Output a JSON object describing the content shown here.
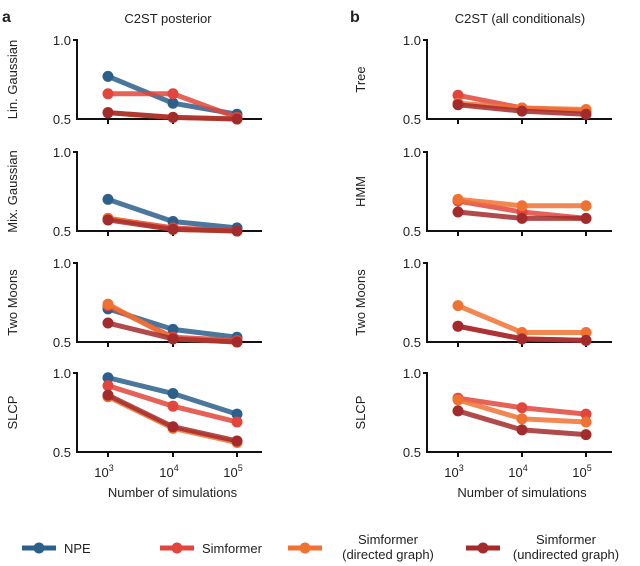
{
  "colors": {
    "NPE": "#2b5f8c",
    "Simformer": "#e2453b",
    "Simformer (directed graph)": "#f07233",
    "Simformer (undirected graph)": "#a32b2b"
  },
  "legend": [
    {
      "key": "NPE",
      "lines": [
        "NPE"
      ]
    },
    {
      "key": "Simformer",
      "lines": [
        "Simformer"
      ]
    },
    {
      "key": "Simformer (directed graph)",
      "lines": [
        "Simformer",
        "(directed graph)"
      ]
    },
    {
      "key": "Simformer (undirected graph)",
      "lines": [
        "Simformer",
        "(undirected graph)"
      ]
    }
  ],
  "chart_data": [
    {
      "panel": "a",
      "title": "C2ST posterior",
      "xlabel": "Number of simulations",
      "type": "line",
      "x": [
        1000,
        10000,
        100000
      ],
      "xtick_labels": [
        "10^3",
        "10^4",
        "10^5"
      ],
      "xscale": "log",
      "ylim": [
        0.5,
        1.0
      ],
      "yticks": [
        "0.5",
        "1.0"
      ],
      "subplots": [
        {
          "ylabel": "Lin. Gaussian",
          "series": [
            {
              "name": "NPE",
              "values": [
                0.77,
                0.6,
                0.53
              ]
            },
            {
              "name": "Simformer",
              "values": [
                0.66,
                0.66,
                0.51
              ]
            },
            {
              "name": "Simformer (directed graph)",
              "values": [
                0.54,
                0.51,
                0.5
              ]
            },
            {
              "name": "Simformer (undirected graph)",
              "values": [
                0.54,
                0.51,
                0.5
              ]
            }
          ]
        },
        {
          "ylabel": "Mix. Gaussian",
          "series": [
            {
              "name": "NPE",
              "values": [
                0.7,
                0.56,
                0.52
              ]
            },
            {
              "name": "Simformer",
              "values": [
                0.58,
                0.52,
                0.5
              ]
            },
            {
              "name": "Simformer (directed graph)",
              "values": [
                0.58,
                0.51,
                0.5
              ]
            },
            {
              "name": "Simformer (undirected graph)",
              "values": [
                0.57,
                0.51,
                0.5
              ]
            }
          ]
        },
        {
          "ylabel": "Two Moons",
          "series": [
            {
              "name": "NPE",
              "values": [
                0.71,
                0.58,
                0.53
              ]
            },
            {
              "name": "Simformer",
              "values": [
                0.73,
                0.53,
                0.51
              ]
            },
            {
              "name": "Simformer (directed graph)",
              "values": [
                0.74,
                0.52,
                0.5
              ]
            },
            {
              "name": "Simformer (undirected graph)",
              "values": [
                0.62,
                0.52,
                0.5
              ]
            }
          ]
        },
        {
          "ylabel": "SLCP",
          "series": [
            {
              "name": "NPE",
              "values": [
                0.97,
                0.87,
                0.74
              ]
            },
            {
              "name": "Simformer",
              "values": [
                0.92,
                0.79,
                0.69
              ]
            },
            {
              "name": "Simformer (directed graph)",
              "values": [
                0.85,
                0.65,
                0.56
              ]
            },
            {
              "name": "Simformer (undirected graph)",
              "values": [
                0.86,
                0.66,
                0.57
              ]
            }
          ]
        }
      ]
    },
    {
      "panel": "b",
      "title": "C2ST (all conditionals)",
      "xlabel": "Number of simulations",
      "type": "line",
      "x": [
        1000,
        10000,
        100000
      ],
      "xtick_labels": [
        "10^3",
        "10^4",
        "10^5"
      ],
      "xscale": "log",
      "ylim": [
        0.5,
        1.0
      ],
      "yticks": [
        "0.5",
        "1.0"
      ],
      "subplots": [
        {
          "ylabel": "Tree",
          "series": [
            {
              "name": "Simformer",
              "values": [
                0.65,
                0.57,
                0.55
              ]
            },
            {
              "name": "Simformer (directed graph)",
              "values": [
                0.6,
                0.57,
                0.56
              ]
            },
            {
              "name": "Simformer (undirected graph)",
              "values": [
                0.59,
                0.55,
                0.53
              ]
            }
          ]
        },
        {
          "ylabel": "HMM",
          "series": [
            {
              "name": "Simformer",
              "values": [
                0.69,
                0.62,
                0.58
              ]
            },
            {
              "name": "Simformer (directed graph)",
              "values": [
                0.7,
                0.66,
                0.66
              ]
            },
            {
              "name": "Simformer (undirected graph)",
              "values": [
                0.62,
                0.58,
                0.58
              ]
            }
          ]
        },
        {
          "ylabel": "Two Moons",
          "series": [
            {
              "name": "Simformer",
              "values": [
                0.6,
                0.52,
                0.51
              ]
            },
            {
              "name": "Simformer (directed graph)",
              "values": [
                0.73,
                0.56,
                0.56
              ]
            },
            {
              "name": "Simformer (undirected graph)",
              "values": [
                0.6,
                0.52,
                0.51
              ]
            }
          ]
        },
        {
          "ylabel": "SLCP",
          "series": [
            {
              "name": "Simformer",
              "values": [
                0.84,
                0.78,
                0.74
              ]
            },
            {
              "name": "Simformer (directed graph)",
              "values": [
                0.83,
                0.71,
                0.69
              ]
            },
            {
              "name": "Simformer (undirected graph)",
              "values": [
                0.76,
                0.64,
                0.61
              ]
            }
          ]
        }
      ]
    }
  ]
}
